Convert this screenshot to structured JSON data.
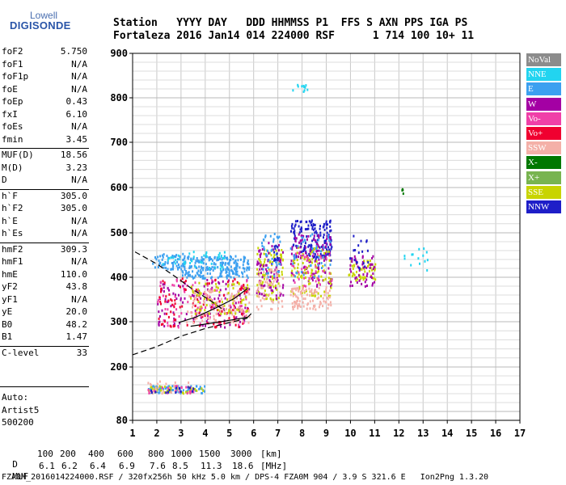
{
  "logo": {
    "line1": "Lowell",
    "line2": "DIGISONDE"
  },
  "header": {
    "line1": "Station   YYYY DAY   DDD HHMMSS P1  FFS S AXN PPS IGA PS",
    "line2": "Fortaleza 2016 Jan14 014 224000 RSF      1 714 100 10+ 11"
  },
  "params": [
    {
      "name": "foF2",
      "value": "5.750"
    },
    {
      "name": "foF1",
      "value": "N/A"
    },
    {
      "name": "foF1p",
      "value": "N/A"
    },
    {
      "name": "foE",
      "value": "N/A"
    },
    {
      "name": "foEp",
      "value": "0.43"
    },
    {
      "name": "fxI",
      "value": "6.10"
    },
    {
      "name": "foEs",
      "value": "N/A"
    },
    {
      "name": "fmin",
      "value": "3.45"
    },
    {
      "name": "MUF(D)",
      "value": "18.56"
    },
    {
      "name": "M(D)",
      "value": "3.23"
    },
    {
      "name": "D",
      "value": "N/A"
    },
    {
      "name": "h`F",
      "value": "305.0"
    },
    {
      "name": "h`F2",
      "value": "305.0"
    },
    {
      "name": "h`E",
      "value": "N/A"
    },
    {
      "name": "h`Es",
      "value": "N/A"
    },
    {
      "name": "hmF2",
      "value": "309.3"
    },
    {
      "name": "hmF1",
      "value": "N/A"
    },
    {
      "name": "hmE",
      "value": "110.0"
    },
    {
      "name": "yF2",
      "value": "43.8"
    },
    {
      "name": "yF1",
      "value": "N/A"
    },
    {
      "name": "yE",
      "value": "20.0"
    },
    {
      "name": "B0",
      "value": "48.2"
    },
    {
      "name": "B1",
      "value": "1.47"
    },
    {
      "name": "C-level",
      "value": "33"
    }
  ],
  "autoscaler": {
    "line1": "Auto:",
    "line2": "Artist5",
    "line3": "500200"
  },
  "legend": [
    {
      "label": "NoVal",
      "color": "#8c8c8c"
    },
    {
      "label": "NNE",
      "color": "#22d4f0"
    },
    {
      "label": "E",
      "color": "#3ca0f0"
    },
    {
      "label": "W",
      "color": "#a400a4"
    },
    {
      "label": "Vo-",
      "color": "#f040a8"
    },
    {
      "label": "Vo+",
      "color": "#f00030"
    },
    {
      "label": "SSW",
      "color": "#f4b0a8"
    },
    {
      "label": "X-",
      "color": "#007800"
    },
    {
      "label": "X+",
      "color": "#78b450"
    },
    {
      "label": "SSE",
      "color": "#c8d400"
    },
    {
      "label": "NNW",
      "color": "#1e1ec8"
    }
  ],
  "muf_table": {
    "d_label": "D",
    "muf_label": "MUF",
    "d_unit": "[km]",
    "muf_unit": "[MHz]",
    "distances": [
      "100",
      "200",
      "400",
      "600",
      "800",
      "1000",
      "1500",
      "3000"
    ],
    "mufs": [
      "6.1",
      "6.2",
      "6.4",
      "6.9",
      "7.6",
      "8.5",
      "11.3",
      "18.6"
    ]
  },
  "footer": "FZA0M_2016014224000.RSF / 320fx256h 50 kHz 5.0 km / DPS-4 FZA0M 904 / 3.9 S 321.6 E   Ion2Png 1.3.20",
  "chart_data": {
    "type": "scatter",
    "xlabel": "",
    "ylabel": "",
    "xlim": [
      1,
      17
    ],
    "ylim": [
      80,
      900
    ],
    "x_ticks": [
      1,
      2,
      3,
      4,
      5,
      6,
      7,
      8,
      9,
      10,
      11,
      12,
      13,
      14,
      15,
      16,
      17
    ],
    "y_ticks": [
      80,
      200,
      300,
      400,
      500,
      600,
      700,
      800,
      900
    ],
    "grid": true,
    "legend_position": "right",
    "clusters": [
      {
        "x": [
          3.0,
          5.8
        ],
        "y": [
          400,
          450
        ],
        "color": "#3ca0f0",
        "n": 230
      },
      {
        "x": [
          1.8,
          3.2
        ],
        "y": [
          420,
          455
        ],
        "color": "#3ca0f0",
        "n": 60
      },
      {
        "x": [
          2.2,
          4.8
        ],
        "y": [
          420,
          460
        ],
        "color": "#22d4f0",
        "n": 40
      },
      {
        "x": [
          2.0,
          5.8
        ],
        "y": [
          290,
          400
        ],
        "color": "#a400a4",
        "n": 140
      },
      {
        "x": [
          2.0,
          5.8
        ],
        "y": [
          290,
          400
        ],
        "color": "#f040a8",
        "n": 90
      },
      {
        "x": [
          2.0,
          5.8
        ],
        "y": [
          290,
          400
        ],
        "color": "#f00030",
        "n": 110
      },
      {
        "x": [
          3.2,
          5.8
        ],
        "y": [
          300,
          380
        ],
        "color": "#f4b0a8",
        "n": 110
      },
      {
        "x": [
          3.3,
          5.8
        ],
        "y": [
          320,
          390
        ],
        "color": "#c8d400",
        "n": 70
      },
      {
        "x": [
          6.1,
          7.2
        ],
        "y": [
          350,
          470
        ],
        "color": "#c8d400",
        "n": 90
      },
      {
        "x": [
          6.1,
          7.2
        ],
        "y": [
          350,
          480
        ],
        "color": "#a400a4",
        "n": 80
      },
      {
        "x": [
          6.1,
          7.2
        ],
        "y": [
          330,
          420
        ],
        "color": "#f4b0a8",
        "n": 60
      },
      {
        "x": [
          6.3,
          7.1
        ],
        "y": [
          400,
          500
        ],
        "color": "#3ca0f0",
        "n": 40
      },
      {
        "x": [
          6.8,
          7.0
        ],
        "y": [
          440,
          480
        ],
        "color": "#1e1ec8",
        "n": 15
      },
      {
        "x": [
          7.5,
          9.2
        ],
        "y": [
          440,
          530
        ],
        "color": "#1e1ec8",
        "n": 160
      },
      {
        "x": [
          7.5,
          9.2
        ],
        "y": [
          380,
          500
        ],
        "color": "#a400a4",
        "n": 110
      },
      {
        "x": [
          7.5,
          9.2
        ],
        "y": [
          360,
          470
        ],
        "color": "#c8d400",
        "n": 100
      },
      {
        "x": [
          7.5,
          9.2
        ],
        "y": [
          330,
          380
        ],
        "color": "#f4b0a8",
        "n": 100
      },
      {
        "x": [
          7.5,
          9.2
        ],
        "y": [
          380,
          460
        ],
        "color": "#f040a8",
        "n": 40
      },
      {
        "x": [
          7.5,
          9.2
        ],
        "y": [
          400,
          500
        ],
        "color": "#3ca0f0",
        "n": 40
      },
      {
        "x": [
          9.9,
          11.0
        ],
        "y": [
          395,
          440
        ],
        "color": "#c8d400",
        "n": 50
      },
      {
        "x": [
          9.9,
          11.0
        ],
        "y": [
          380,
          450
        ],
        "color": "#a400a4",
        "n": 50
      },
      {
        "x": [
          9.9,
          10.7
        ],
        "y": [
          420,
          500
        ],
        "color": "#1e1ec8",
        "n": 20
      },
      {
        "x": [
          1.6,
          4.0
        ],
        "y": [
          143,
          160
        ],
        "color": "#3ca0f0",
        "n": 70
      },
      {
        "x": [
          1.6,
          4.0
        ],
        "y": [
          143,
          160
        ],
        "color": "#c8d400",
        "n": 40
      },
      {
        "x": [
          1.6,
          3.5
        ],
        "y": [
          143,
          170
        ],
        "color": "#f4b0a8",
        "n": 30
      },
      {
        "x": [
          1.6,
          3.5
        ],
        "y": [
          143,
          160
        ],
        "color": "#f040a8",
        "n": 20
      },
      {
        "x": [
          1.7,
          3.5
        ],
        "y": [
          143,
          158
        ],
        "color": "#1e1ec8",
        "n": 15
      },
      {
        "x": [
          7.5,
          8.4
        ],
        "y": [
          815,
          835
        ],
        "color": "#22d4f0",
        "n": 12
      },
      {
        "x": [
          12.2,
          13.2
        ],
        "y": [
          415,
          470
        ],
        "color": "#22d4f0",
        "n": 14
      },
      {
        "x": [
          12.1,
          12.3
        ],
        "y": [
          580,
          605
        ],
        "color": "#007800",
        "n": 4
      }
    ],
    "trace_solid": [
      [
        2.9,
        298
      ],
      [
        3.6,
        310
      ],
      [
        4.4,
        330
      ],
      [
        5.2,
        352
      ],
      [
        5.75,
        375
      ]
    ],
    "trace_solid_lower": [
      [
        3.4,
        290
      ],
      [
        4.4,
        298
      ],
      [
        5.2,
        305
      ],
      [
        5.75,
        310
      ],
      [
        5.9,
        318
      ]
    ],
    "trace_dashed_lower": [
      [
        1.0,
        227
      ],
      [
        2.0,
        245
      ],
      [
        3.0,
        268
      ],
      [
        4.0,
        285
      ],
      [
        5.0,
        298
      ],
      [
        5.75,
        308
      ]
    ],
    "trace_dashed_upper": [
      [
        1.1,
        457
      ],
      [
        2.0,
        430
      ],
      [
        2.8,
        400
      ],
      [
        3.5,
        372
      ],
      [
        4.2,
        348
      ],
      [
        4.8,
        325
      ]
    ]
  }
}
